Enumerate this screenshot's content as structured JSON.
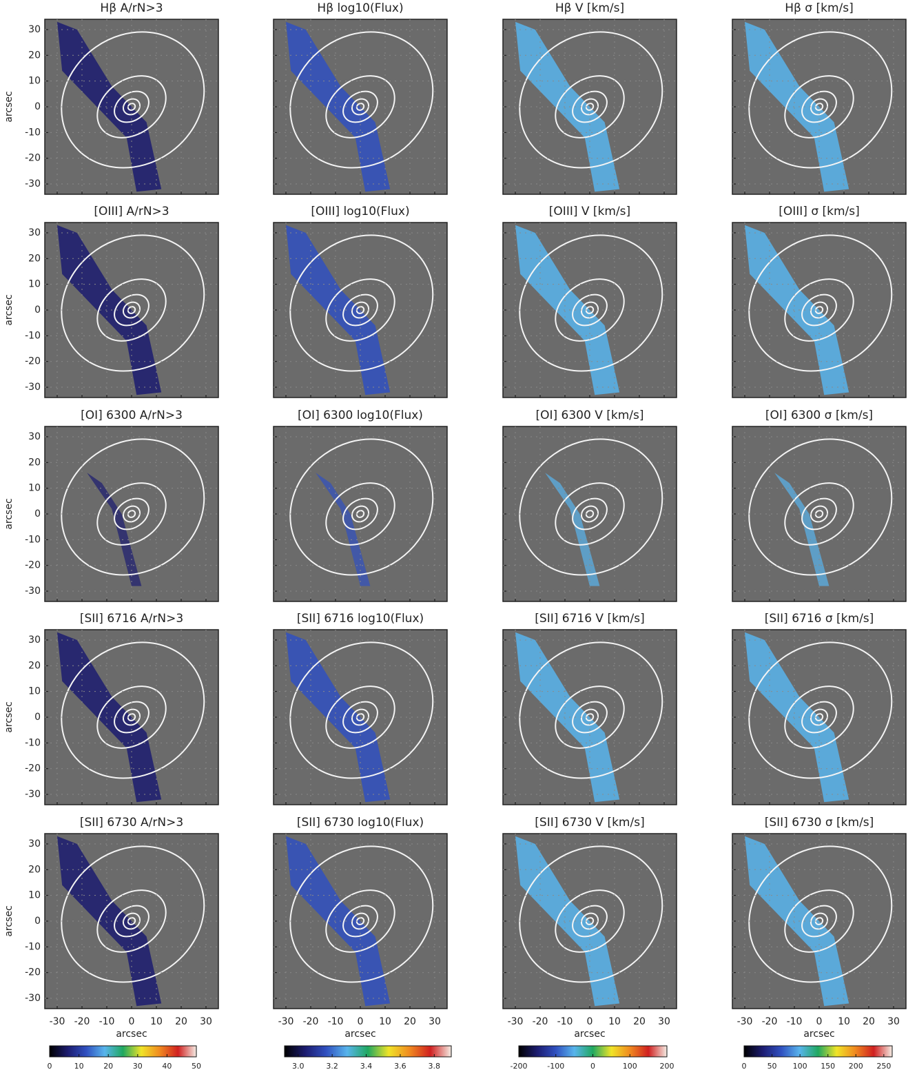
{
  "chart_data": {
    "type": "map",
    "xlabel": "arcsec",
    "ylabel": "arcsec",
    "xlim": [
      -35,
      35
    ],
    "ylim": [
      -34,
      34
    ],
    "xticks": [
      -30,
      -20,
      -10,
      0,
      10,
      20,
      30
    ],
    "yticks": [
      -30,
      -20,
      -10,
      0,
      10,
      20,
      30
    ],
    "grid": true,
    "colormap": [
      "#000000",
      "#1c1c70",
      "#3050c0",
      "#58b4ec",
      "#20a860",
      "#f0e428",
      "#f08a20",
      "#d02020",
      "#f4ece4"
    ],
    "panels": [
      {
        "title": "Hβ A/rN>3"
      },
      {
        "title": "Hβ log10(Flux)"
      },
      {
        "title": "Hβ V [km/s]"
      },
      {
        "title": "Hβ σ [km/s]"
      },
      {
        "title": "[OIII] A/rN>3"
      },
      {
        "title": "[OIII] log10(Flux)"
      },
      {
        "title": "[OIII] V [km/s]"
      },
      {
        "title": "[OIII] σ [km/s]"
      },
      {
        "title": "[OI] 6300 A/rN>3"
      },
      {
        "title": "[OI] 6300 log10(Flux)"
      },
      {
        "title": "[OI] 6300 V [km/s]"
      },
      {
        "title": "[OI] 6300 σ [km/s]"
      },
      {
        "title": "[SII] 6716 A/rN>3"
      },
      {
        "title": "[SII] 6716 log10(Flux)"
      },
      {
        "title": "[SII] 6716 V [km/s]"
      },
      {
        "title": "[SII] 6716 σ [km/s]"
      },
      {
        "title": "[SII] 6730 A/rN>3"
      },
      {
        "title": "[SII] 6730 log10(Flux)"
      },
      {
        "title": "[SII] 6730 V [km/s]"
      },
      {
        "title": "[SII] 6730 σ [km/s]"
      }
    ],
    "colorbars": [
      {
        "lim": [
          0,
          50
        ],
        "ticks": [
          0,
          10,
          20,
          30,
          40,
          50
        ]
      },
      {
        "lim": [
          2.92,
          3.9
        ],
        "ticks": [
          {
            "value": 3,
            "label": "3.0"
          },
          {
            "value": 3.2,
            "label": "3.2"
          },
          {
            "value": 3.4,
            "label": "3.4"
          },
          {
            "value": 3.6,
            "label": "3.6"
          },
          {
            "value": 3.8,
            "label": "3.8"
          }
        ]
      },
      {
        "lim": [
          -200,
          200
        ],
        "ticks": [
          -200,
          -100,
          0,
          100,
          200
        ]
      },
      {
        "lim": [
          0,
          265
        ],
        "ticks": [
          0,
          50,
          100,
          150,
          200,
          250
        ]
      }
    ]
  }
}
